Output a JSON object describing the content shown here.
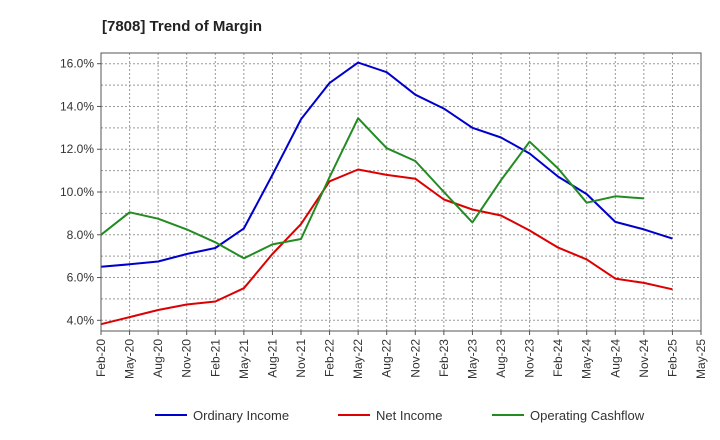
{
  "chart_data": {
    "type": "line",
    "title": "[7808]  Trend of Margin",
    "xlabel": "",
    "ylabel": "",
    "ylim": [
      3.5,
      16.5
    ],
    "yticks": [
      4.0,
      6.0,
      8.0,
      10.0,
      12.0,
      14.0,
      16.0
    ],
    "ytick_labels": [
      "4.0%",
      "6.0%",
      "8.0%",
      "10.0%",
      "12.0%",
      "14.0%",
      "16.0%"
    ],
    "x": [
      "Feb-20",
      "May-20",
      "Aug-20",
      "Nov-20",
      "Feb-21",
      "May-21",
      "Aug-21",
      "Nov-21",
      "Feb-22",
      "May-22",
      "Aug-22",
      "Nov-22",
      "Feb-23",
      "May-23",
      "Aug-23",
      "Nov-23",
      "Feb-24",
      "May-24",
      "Aug-24",
      "Nov-24",
      "Feb-25",
      "May-25"
    ],
    "grid": true,
    "legend_position": "bottom",
    "series": [
      {
        "name": "Ordinary Income",
        "color": "#0000cc",
        "values": [
          6.5,
          6.62,
          6.75,
          7.1,
          7.38,
          8.3,
          10.8,
          13.4,
          15.1,
          16.05,
          15.6,
          14.55,
          13.9,
          13.0,
          12.55,
          11.8,
          10.72,
          9.9,
          8.6,
          8.25,
          7.82,
          null
        ]
      },
      {
        "name": "Net Income",
        "color": "#dd0000",
        "values": [
          3.82,
          4.15,
          4.48,
          4.74,
          4.88,
          5.5,
          7.1,
          8.5,
          10.5,
          11.05,
          10.8,
          10.62,
          9.65,
          9.18,
          8.9,
          8.2,
          7.4,
          6.85,
          5.95,
          5.75,
          5.45,
          null
        ]
      },
      {
        "name": "Operating Cashflow",
        "color": "#228b22",
        "values": [
          8.0,
          9.05,
          8.75,
          8.25,
          7.65,
          6.9,
          7.55,
          7.8,
          10.7,
          13.45,
          12.05,
          11.45,
          10.0,
          8.58,
          10.55,
          12.35,
          11.1,
          9.5,
          9.8,
          9.7,
          null,
          null
        ]
      }
    ]
  }
}
